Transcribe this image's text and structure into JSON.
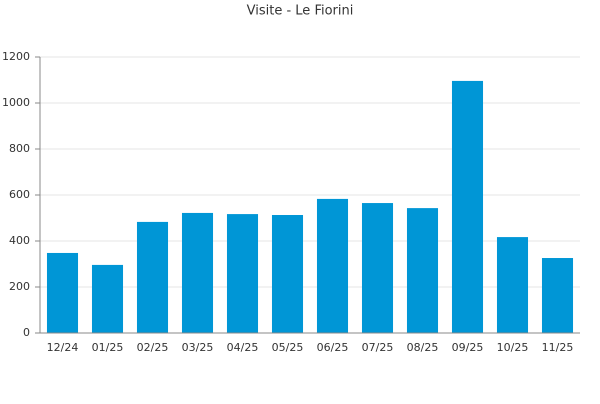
{
  "chart_data": {
    "type": "bar",
    "title": "Visite - Le Fiorini",
    "categories": [
      "12/24",
      "01/25",
      "02/25",
      "03/25",
      "04/25",
      "05/25",
      "06/25",
      "07/25",
      "08/25",
      "09/25",
      "10/25",
      "11/25"
    ],
    "values": [
      348,
      296,
      483,
      522,
      517,
      513,
      583,
      565,
      543,
      1096,
      417,
      326
    ],
    "color": "#0096d6",
    "ylim": [
      0,
      1200
    ],
    "yticks": [
      0,
      200,
      400,
      600,
      800,
      1000,
      1200
    ],
    "grid": true
  }
}
